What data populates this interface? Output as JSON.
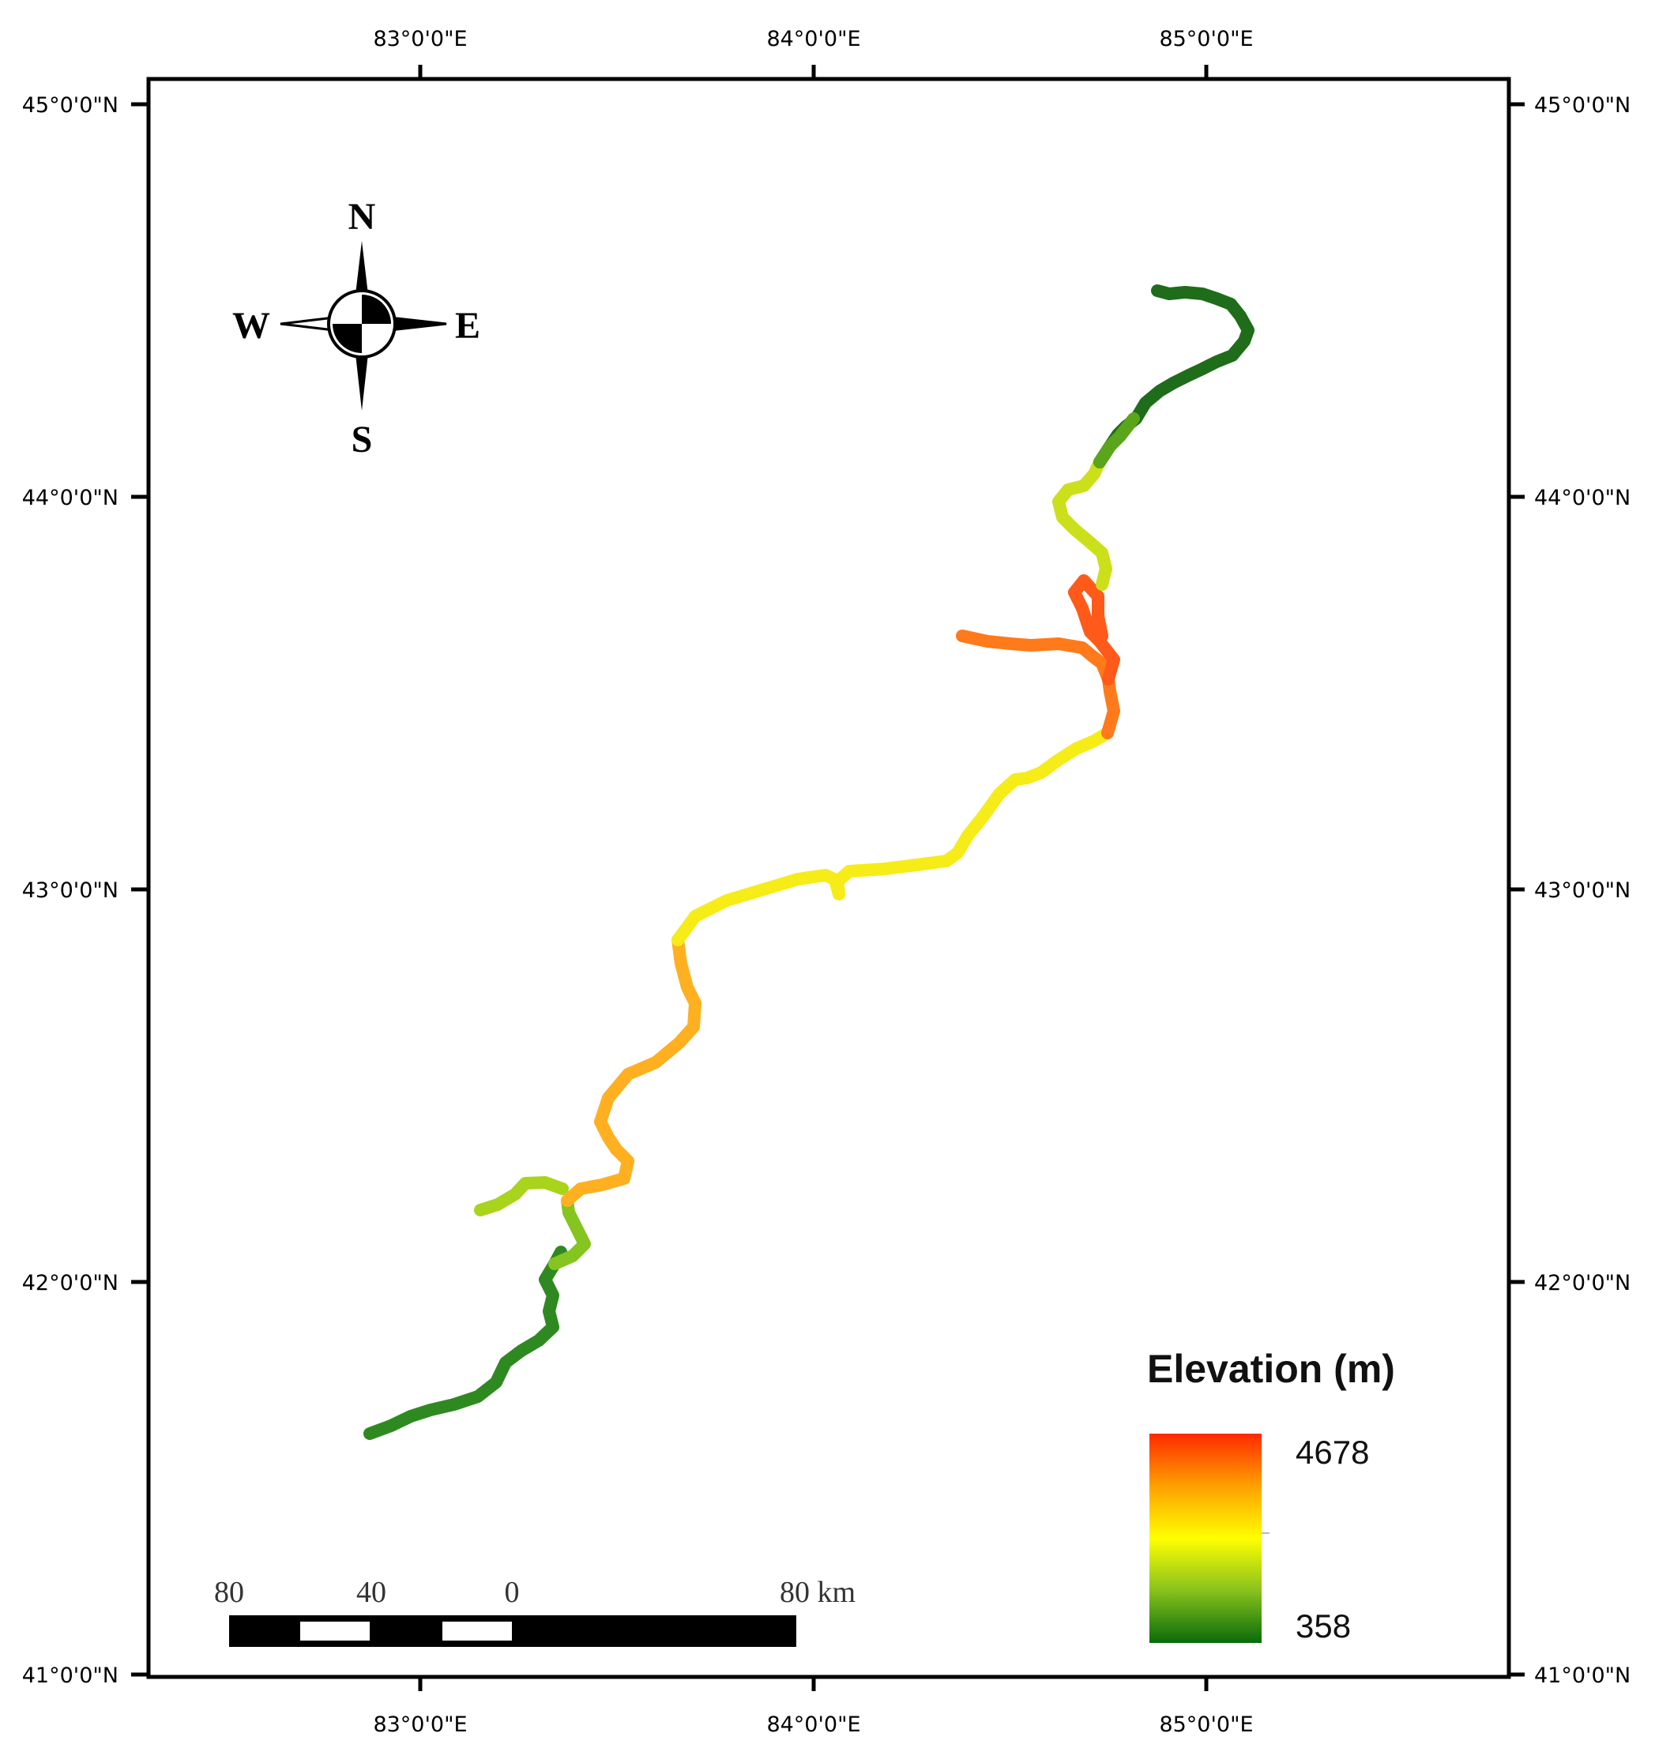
{
  "map": {
    "axes": {
      "top_labels": [
        "83°0'0\"E",
        "84°0'0\"E",
        "85°0'0\"E"
      ],
      "bottom_labels": [
        "83°0'0\"E",
        "84°0'0\"E",
        "85°0'0\"E"
      ],
      "left_labels": [
        "45°0'0\"N",
        "44°0'0\"N",
        "43°0'0\"N",
        "42°0'0\"N",
        "41°0'0\"N"
      ],
      "right_labels": [
        "45°0'0\"N",
        "44°0'0\"N",
        "43°0'0\"N",
        "42°0'0\"N",
        "41°0'0\"N"
      ],
      "lon_range": [
        82.0,
        85.0
      ],
      "lat_range": [
        41.0,
        45.0
      ]
    },
    "compass": {
      "north": "N",
      "south": "S",
      "east": "E",
      "west": "W",
      "icon": "north-arrow-compass-rose-icon"
    },
    "scale_bar": {
      "labels": [
        "80",
        "40",
        "0",
        "80 km"
      ],
      "unit": "km"
    },
    "legend": {
      "title": "Elevation (m)",
      "max": "4678",
      "min": "358",
      "colors": [
        "#ff2a00",
        "#ffa500",
        "#ffff00",
        "#7fbf1f",
        "#0a6b0a"
      ]
    },
    "route_colors": {
      "low": "#1a7a1a",
      "mid_low": "#7cc11e",
      "mid": "#f4f21a",
      "mid_high": "#ffa51e",
      "high": "#ff6a1a"
    }
  }
}
